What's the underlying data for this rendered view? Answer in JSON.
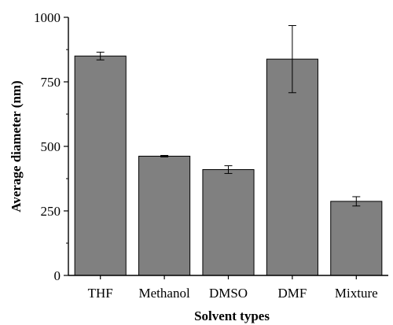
{
  "chart_data": {
    "type": "bar",
    "title": "",
    "xlabel": "Solvent types",
    "ylabel": "Average diameter (nm)",
    "categories": [
      "THF",
      "Methanol",
      "DMSO",
      "DMF",
      "Mixture"
    ],
    "values": [
      850,
      462,
      410,
      838,
      287
    ],
    "errors": [
      15,
      3,
      15,
      130,
      18
    ],
    "ylim": [
      0,
      1000
    ],
    "yticks": [
      "0",
      "250",
      "500",
      "750",
      "1000"
    ],
    "ytick_values": [
      0,
      250,
      500,
      750,
      1000
    ],
    "grid": false,
    "legend": "none",
    "colors": {
      "bar_fill": "#808080",
      "bar_stroke": "#000000",
      "axis": "#000000"
    }
  }
}
